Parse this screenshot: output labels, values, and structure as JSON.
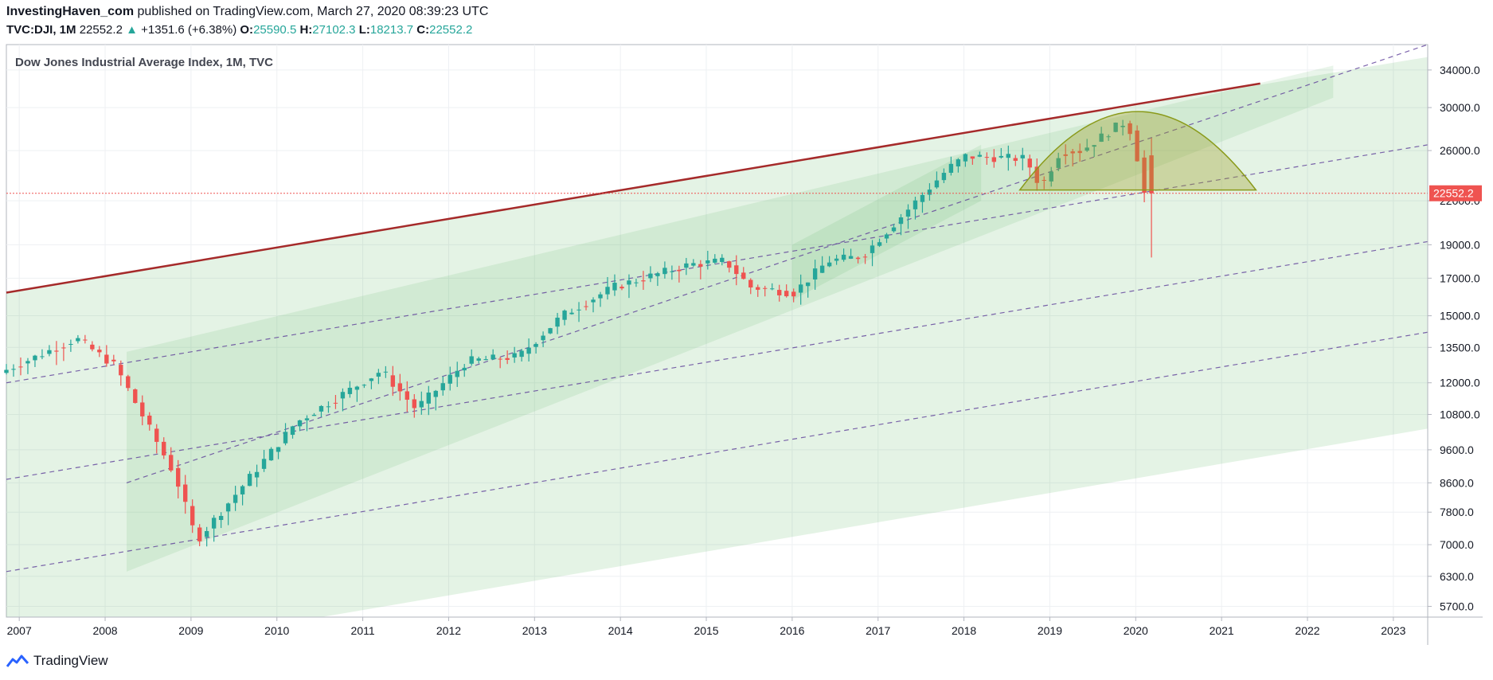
{
  "header": {
    "author": "InvestingHaven_com",
    "published": "published on TradingView.com, March 27, 2020 08:39:23 UTC",
    "symbol": "TVC:DJI, 1M",
    "last": "22552.2",
    "change_arrow": "▲",
    "change": "+1351.6 (+6.38%)",
    "o_label": "O:",
    "o_value": "25590.5",
    "h_label": "H:",
    "h_value": "27102.3",
    "l_label": "L:",
    "l_value": "18213.7",
    "c_label": "C:",
    "c_value": "22552.2"
  },
  "footer": {
    "brand": "TradingView",
    "icon": "tradingview-logo-icon"
  },
  "colors": {
    "up": "#26a69a",
    "down": "#ef5350",
    "resistance": "#a52a2a",
    "channel_fill": "#4caf50",
    "dashed": "#5c3d99",
    "dome": "#9e9d24",
    "price_line": "#ef5350"
  },
  "chart_data": {
    "type": "candlestick",
    "title": "Dow Jones Industrial Average Index, 1M, TVC",
    "scale": "log",
    "ylim": [
      5500,
      37000
    ],
    "xlim": [
      2006.85,
      2023.4
    ],
    "x_ticks": [
      "2007",
      "2008",
      "2009",
      "2010",
      "2011",
      "2012",
      "2013",
      "2014",
      "2015",
      "2016",
      "2017",
      "2018",
      "2019",
      "2020",
      "2021",
      "2022",
      "2023"
    ],
    "y_ticks": [
      "34000.0",
      "30000.0",
      "26000.0",
      "22000.0",
      "19000.0",
      "17000.0",
      "15000.0",
      "13500.0",
      "12000.0",
      "10800.0",
      "9600.0",
      "8600.0",
      "7800.0",
      "7000.0",
      "6300.0",
      "5700.0"
    ],
    "last_price": "22552.2",
    "candle_anchors": [
      [
        2006.85,
        12400
      ],
      [
        2007.75,
        13900
      ],
      [
        2008.2,
        12700
      ],
      [
        2008.9,
        8800
      ],
      [
        2009.15,
        7100
      ],
      [
        2010.3,
        10500
      ],
      [
        2011.3,
        12500
      ],
      [
        2011.7,
        11000
      ],
      [
        2012.3,
        12900
      ],
      [
        2012.9,
        13100
      ],
      [
        2013.4,
        15000
      ],
      [
        2014.0,
        16500
      ],
      [
        2014.9,
        17800
      ],
      [
        2015.3,
        18000
      ],
      [
        2015.6,
        16500
      ],
      [
        2016.1,
        16200
      ],
      [
        2016.5,
        18000
      ],
      [
        2016.9,
        18300
      ],
      [
        2017.9,
        24500
      ],
      [
        2018.1,
        25500
      ],
      [
        2018.8,
        25300
      ],
      [
        2018.98,
        23000
      ],
      [
        2019.2,
        25900
      ],
      [
        2019.45,
        26000
      ],
      [
        2019.92,
        28500
      ],
      [
        2020.0,
        28300
      ],
      [
        2020.1,
        25400
      ],
      [
        2020.17,
        22552
      ]
    ],
    "annotations": {
      "resistance": [
        [
          2006.85,
          16200
        ],
        [
          2021.45,
          32500
        ]
      ],
      "channels": [
        {
          "top": [
            [
              2006.85,
              16200
            ],
            [
              2023.4,
              35500
            ]
          ],
          "bottom": [
            [
              2006.85,
              4600
            ],
            [
              2023.4,
              10300
            ]
          ],
          "opacity": 0.15
        },
        {
          "top": [
            [
              2008.25,
              13300
            ],
            [
              2022.3,
              34500
            ]
          ],
          "bottom": [
            [
              2008.25,
              6400
            ],
            [
              2022.3,
              31000
            ]
          ],
          "opacity": 0.12
        },
        {
          "top": [
            [
              2016.0,
              19000
            ],
            [
              2018.2,
              26500
            ]
          ],
          "bottom": [
            [
              2016.0,
              15800
            ],
            [
              2018.2,
              22000
            ]
          ],
          "opacity": 0.12
        }
      ],
      "dashed_lines": [
        [
          [
            2006.85,
            12000
          ],
          [
            2023.4,
            26500
          ]
        ],
        [
          [
            2006.85,
            8700
          ],
          [
            2023.4,
            19200
          ]
        ],
        [
          [
            2006.85,
            6400
          ],
          [
            2023.4,
            14200
          ]
        ],
        [
          [
            2008.25,
            8600
          ],
          [
            2023.4,
            37000
          ]
        ]
      ],
      "dome": {
        "x0": 2018.65,
        "x1": 2021.4,
        "base": 22800,
        "peak": 29600
      }
    }
  }
}
